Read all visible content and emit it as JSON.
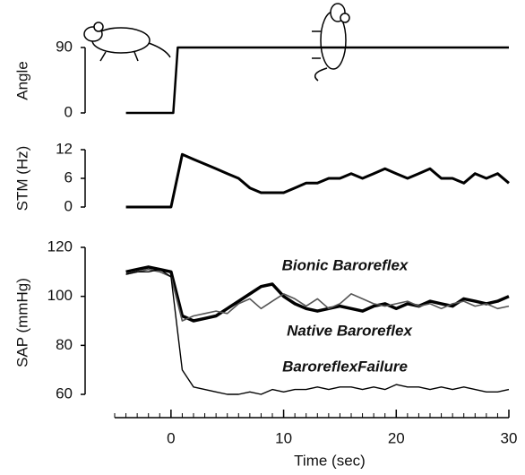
{
  "chart_data": [
    {
      "type": "line",
      "ylabel": "Angle",
      "ylim": [
        0,
        90
      ],
      "yticks": [
        0,
        90
      ],
      "color": "#000",
      "x": [
        -4,
        0.2,
        0.6,
        30
      ],
      "values": [
        0,
        0,
        90,
        90
      ]
    },
    {
      "type": "line",
      "ylabel": "STM (Hz)",
      "ylim": [
        0,
        12
      ],
      "yticks": [
        0,
        6,
        12
      ],
      "color": "#000",
      "x": [
        -4,
        -3,
        -2,
        -1,
        0,
        1,
        2,
        3,
        4,
        5,
        6,
        7,
        8,
        9,
        10,
        11,
        12,
        13,
        14,
        15,
        16,
        17,
        18,
        19,
        20,
        21,
        22,
        23,
        24,
        25,
        26,
        27,
        28,
        29,
        30
      ],
      "values": [
        0,
        0,
        0,
        0,
        0,
        11,
        10,
        9,
        8,
        7,
        6,
        4,
        3,
        3,
        3,
        4,
        5,
        5,
        6,
        6,
        7,
        6,
        7,
        8,
        7,
        6,
        7,
        8,
        6,
        6,
        5,
        7,
        6,
        7,
        5
      ]
    },
    {
      "type": "line",
      "ylabel": "SAP (mmHg)",
      "xlabel": "Time (sec)",
      "ylim": [
        58,
        120
      ],
      "yticks": [
        60,
        80,
        100,
        120
      ],
      "xlim": [
        -5,
        30
      ],
      "xticks": [
        0,
        10,
        20,
        30
      ],
      "xminorticks": [
        -5,
        -4,
        -3,
        -2,
        -1,
        0,
        1,
        2,
        3,
        4,
        5,
        6,
        7,
        8,
        9,
        10,
        11,
        12,
        13,
        14,
        15,
        16,
        17,
        18,
        19,
        20,
        21,
        22,
        23,
        24,
        25,
        26,
        27,
        28,
        29,
        30
      ],
      "x": [
        -4,
        -3,
        -2,
        -1,
        0,
        1,
        2,
        3,
        4,
        5,
        6,
        7,
        8,
        9,
        10,
        11,
        12,
        13,
        14,
        15,
        16,
        17,
        18,
        19,
        20,
        21,
        22,
        23,
        24,
        25,
        26,
        27,
        28,
        29,
        30
      ],
      "series": [
        {
          "name": "Bionic Baroreflex",
          "color": "#000",
          "values": [
            110,
            111,
            112,
            111,
            110,
            92,
            90,
            91,
            92,
            95,
            98,
            101,
            104,
            105,
            100,
            97,
            95,
            94,
            95,
            96,
            95,
            94,
            96,
            97,
            95,
            97,
            96,
            98,
            97,
            96,
            99,
            98,
            97,
            98,
            100
          ]
        },
        {
          "name": "Native Baroreflex",
          "color": "#555",
          "values": [
            109,
            110,
            111,
            110,
            108,
            90,
            92,
            93,
            94,
            93,
            97,
            99,
            95,
            98,
            101,
            99,
            96,
            99,
            95,
            97,
            101,
            99,
            97,
            96,
            97,
            98,
            96,
            97,
            95,
            97,
            98,
            96,
            97,
            95,
            96
          ]
        },
        {
          "name": "BaroreflexFailure",
          "color": "#000",
          "values": [
            109,
            110,
            110,
            111,
            108,
            70,
            63,
            62,
            61,
            60,
            60,
            61,
            60,
            62,
            61,
            62,
            62,
            63,
            62,
            63,
            63,
            62,
            63,
            62,
            64,
            63,
            63,
            62,
            63,
            62,
            63,
            62,
            61,
            61,
            62
          ]
        }
      ]
    }
  ]
}
